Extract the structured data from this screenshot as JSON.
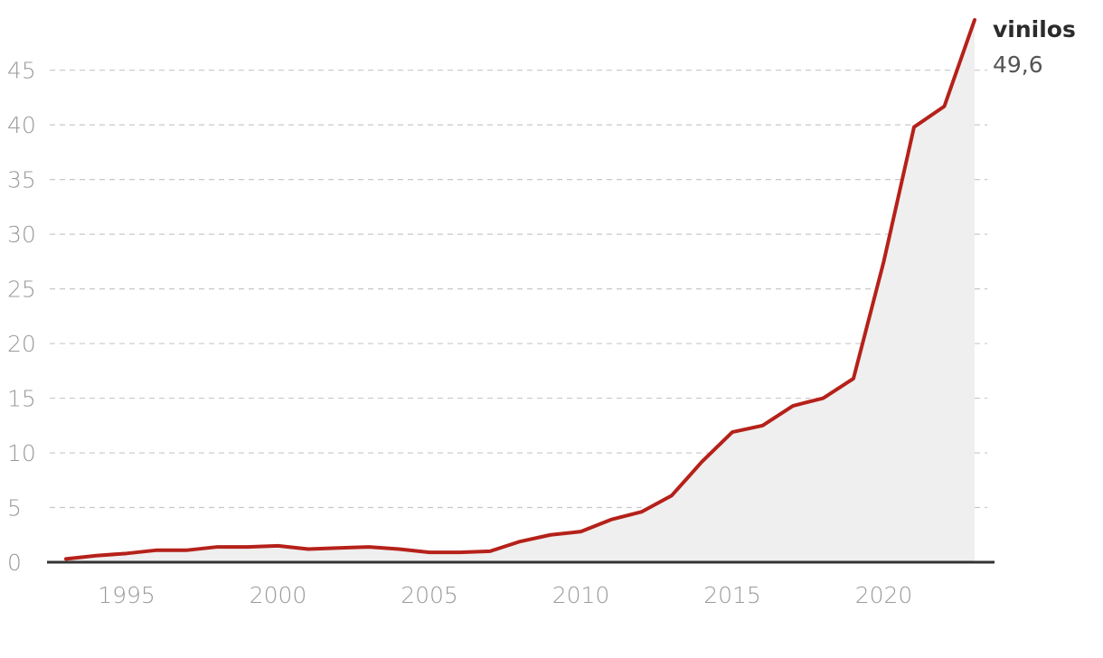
{
  "chart_data": {
    "type": "area",
    "x": [
      1993,
      1994,
      1995,
      1996,
      1997,
      1998,
      1999,
      2000,
      2001,
      2002,
      2003,
      2004,
      2005,
      2006,
      2007,
      2008,
      2009,
      2010,
      2011,
      2012,
      2013,
      2014,
      2015,
      2016,
      2017,
      2018,
      2019,
      2020,
      2021,
      2022,
      2023
    ],
    "series": [
      {
        "name": "vinilos",
        "values": [
          0.3,
          0.6,
          0.8,
          1.1,
          1.1,
          1.4,
          1.4,
          1.5,
          1.2,
          1.3,
          1.4,
          1.2,
          0.9,
          0.9,
          1.0,
          1.9,
          2.5,
          2.8,
          3.9,
          4.6,
          6.1,
          9.2,
          11.9,
          12.5,
          14.3,
          15.0,
          16.8,
          27.5,
          39.8,
          41.7,
          49.6
        ],
        "end_label": "49,6",
        "color": "#b5211a",
        "fill_color": "#efefef"
      }
    ],
    "x_ticks": [
      1995,
      2000,
      2005,
      2010,
      2015,
      2020
    ],
    "y_ticks": [
      0,
      5,
      10,
      15,
      20,
      25,
      30,
      35,
      40,
      45
    ],
    "xlim": [
      1993,
      2023
    ],
    "ylim": [
      0,
      50
    ],
    "title": "",
    "xlabel": "",
    "ylabel": "",
    "grid": true,
    "legend": "end-of-line label"
  }
}
